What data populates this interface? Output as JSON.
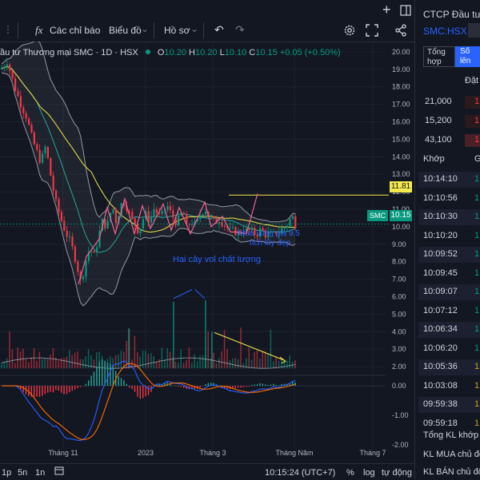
{
  "toolbar": {
    "plus_icon": "+",
    "indicators_icon": "fx",
    "indicators_label": "Các chỉ báo",
    "chart_type_label": "Biểu đồ",
    "profile_label": "Hồ sơ"
  },
  "legend": {
    "title": "ầu tư Thương mại SMC · 1D · HSX",
    "o_label": "O",
    "o": "10.20",
    "h_label": "H",
    "h": "10.20",
    "l_label": "L",
    "l": "10.10",
    "c_label": "C",
    "c": "10.15",
    "change": "+0.05 (+0.50%)"
  },
  "annotations": {
    "accumulate_line1": "Mua vùng giá 9.5",
    "accumulate_line2": "tích lũy đẹp",
    "volume_note": "Hai cây vol chất lượng"
  },
  "price_labels": {
    "level": "11.81",
    "symbol": "SMC",
    "last": "10.15"
  },
  "bottom_bar": {
    "ranges": [
      "1p",
      "5n",
      "1n"
    ],
    "time": "10:15:24 (UTC+7)",
    "percent": "%",
    "log": "log",
    "auto": "tự động"
  },
  "right_panel": {
    "title": "CTCP Đầu tư",
    "symbol": "SMC:HSX",
    "tab1_line1": "Tổng",
    "tab1_line2": "hợp",
    "tab2_line1": "Số",
    "tab2_line2": "lên",
    "dat_header": "Đặt",
    "bids": [
      "21,000",
      "15,200",
      "43,100"
    ],
    "khop_header": "Khớp",
    "g_header": "G",
    "trades": [
      {
        "time": "10:14:10",
        "color": "#089981"
      },
      {
        "time": "10:10:56",
        "color": "#089981"
      },
      {
        "time": "10:10:30",
        "color": "#089981"
      },
      {
        "time": "10:10:20",
        "color": "#089981"
      },
      {
        "time": "10:09:52",
        "color": "#089981"
      },
      {
        "time": "10:09:45",
        "color": "#089981"
      },
      {
        "time": "10:09:07",
        "color": "#089981"
      },
      {
        "time": "10:07:12",
        "color": "#089981"
      },
      {
        "time": "10:06:34",
        "color": "#089981"
      },
      {
        "time": "10:06:20",
        "color": "#089981"
      },
      {
        "time": "10:05:36",
        "color": "#c9a21a"
      },
      {
        "time": "10:03:08",
        "color": "#c9a21a"
      },
      {
        "time": "09:59:38",
        "color": "#c9a21a"
      },
      {
        "time": "09:59:18",
        "color": "#c9a21a"
      }
    ],
    "total_label": "Tổng KL khớp",
    "buy_label": "KL MUA chủ độ",
    "sell_label": "KL BÁN chủ độn"
  },
  "chart_data": {
    "type": "candlestick",
    "symbol": "SMC",
    "exchange": "HSX",
    "interval": "1D",
    "price_axis_ticks": [
      20.0,
      19.0,
      18.0,
      17.0,
      16.0,
      15.0,
      14.0,
      13.0,
      12.0,
      11.0,
      10.0,
      9.0,
      8.0,
      7.0,
      6.0,
      5.0,
      4.0,
      3.0,
      2.0
    ],
    "price_ylim": [
      1.5,
      20.5
    ],
    "oscillator_ticks": [
      0.0,
      -1.0,
      -2.0
    ],
    "x_ticks": [
      "Tháng 11",
      "2023",
      "Tháng 3",
      "Tháng Năm",
      "Tháng 7"
    ],
    "horizontal_level": 11.81,
    "last_price": 10.15,
    "price_path": [
      [
        0,
        19.0
      ],
      [
        8,
        19.5
      ],
      [
        14,
        18.5
      ],
      [
        20,
        17.6
      ],
      [
        26,
        16.9
      ],
      [
        32,
        16.3
      ],
      [
        38,
        15.2
      ],
      [
        44,
        14.4
      ],
      [
        50,
        13.7
      ],
      [
        56,
        14.6
      ],
      [
        62,
        13.0
      ],
      [
        68,
        11.5
      ],
      [
        74,
        10.6
      ],
      [
        80,
        9.8
      ],
      [
        86,
        9.2
      ],
      [
        92,
        8.4
      ],
      [
        96,
        7.6
      ],
      [
        100,
        6.8
      ],
      [
        104,
        7.6
      ],
      [
        108,
        8.4
      ],
      [
        112,
        8.8
      ],
      [
        116,
        8.2
      ],
      [
        120,
        9.0
      ],
      [
        124,
        9.8
      ],
      [
        128,
        10.5
      ],
      [
        132,
        9.8
      ],
      [
        136,
        10.7
      ],
      [
        140,
        11.1
      ],
      [
        144,
        10.3
      ],
      [
        148,
        10.9
      ],
      [
        152,
        11.5
      ],
      [
        156,
        11.3
      ],
      [
        160,
        10.8
      ],
      [
        164,
        10.4
      ],
      [
        168,
        10.2
      ],
      [
        172,
        9.7
      ],
      [
        176,
        10.2
      ],
      [
        180,
        10.8
      ],
      [
        184,
        10.4
      ],
      [
        188,
        10.6
      ],
      [
        192,
        11.1
      ],
      [
        196,
        10.7
      ],
      [
        200,
        10.5
      ],
      [
        204,
        10.9
      ],
      [
        208,
        11.2
      ],
      [
        212,
        10.8
      ],
      [
        216,
        10.5
      ],
      [
        220,
        10.2
      ],
      [
        224,
        10.6
      ],
      [
        228,
        10.9
      ],
      [
        232,
        9.9
      ],
      [
        236,
        10.2
      ],
      [
        240,
        10.3
      ],
      [
        244,
        10.0
      ],
      [
        248,
        10.6
      ],
      [
        252,
        10.9
      ],
      [
        256,
        11.0
      ],
      [
        260,
        10.6
      ],
      [
        264,
        10.4
      ],
      [
        268,
        10.2
      ],
      [
        272,
        10.5
      ],
      [
        276,
        10.3
      ],
      [
        280,
        10.1
      ],
      [
        284,
        9.9
      ],
      [
        288,
        9.7
      ],
      [
        292,
        9.8
      ],
      [
        296,
        9.6
      ],
      [
        300,
        9.7
      ],
      [
        304,
        9.9
      ],
      [
        308,
        9.7
      ],
      [
        312,
        9.8
      ],
      [
        316,
        9.6
      ],
      [
        320,
        9.6
      ],
      [
        324,
        9.8
      ],
      [
        328,
        9.7
      ],
      [
        332,
        9.5
      ],
      [
        336,
        9.6
      ],
      [
        340,
        9.5
      ],
      [
        344,
        9.7
      ],
      [
        348,
        9.7
      ],
      [
        352,
        9.9
      ],
      [
        356,
        10.0
      ],
      [
        360,
        10.3
      ],
      [
        364,
        10.6
      ],
      [
        368,
        10.2
      ],
      [
        370,
        10.15
      ]
    ],
    "volume_spikes": [
      [
        216,
        5.7
      ],
      [
        256,
        5.8
      ],
      [
        264,
        4.0
      ],
      [
        160,
        4.2
      ]
    ]
  }
}
